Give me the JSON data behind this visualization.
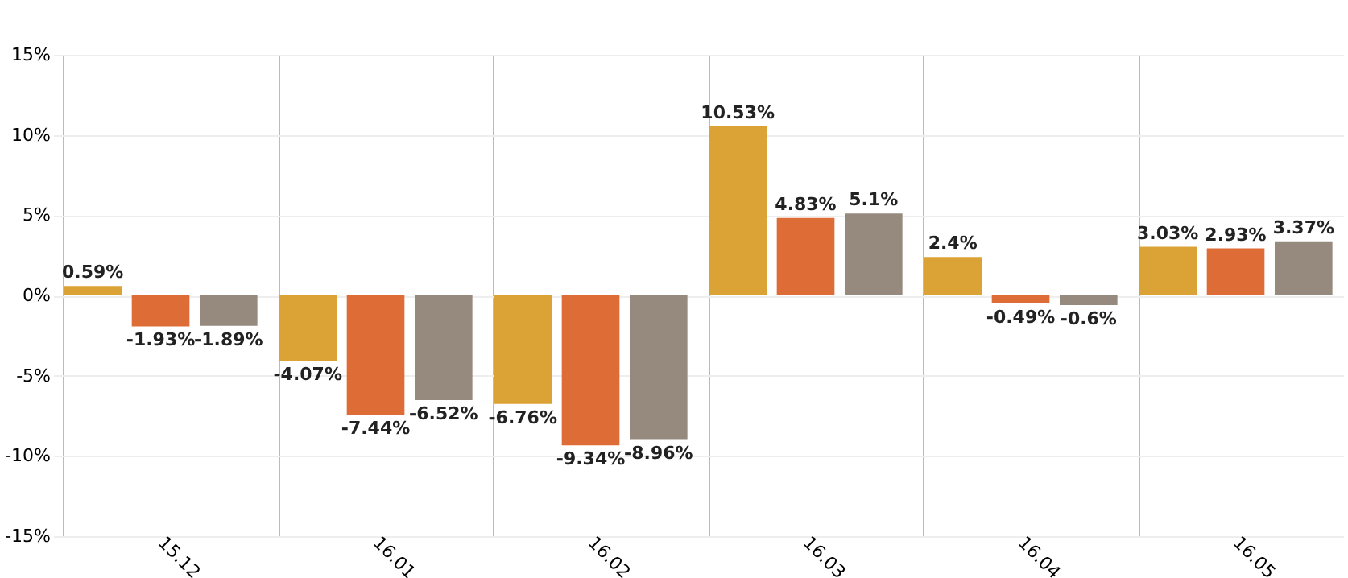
{
  "chart_data": {
    "type": "bar",
    "categories": [
      "15.12",
      "16.01",
      "16.02",
      "16.03",
      "16.04",
      "16.05"
    ],
    "series": [
      {
        "color": "#dba336",
        "values": [
          0.59,
          -4.07,
          -6.76,
          10.53,
          2.4,
          3.03
        ],
        "value_labels": [
          "0.59%",
          "-4.07%",
          "-6.76%",
          "10.53%",
          "2.4%",
          "3.03%"
        ]
      },
      {
        "color": "#de6c37",
        "values": [
          -1.93,
          -7.44,
          -9.34,
          4.83,
          -0.49,
          2.93
        ],
        "value_labels": [
          "-1.93%",
          "-7.44%",
          "-9.34%",
          "4.83%",
          "-0.49%",
          "2.93%"
        ]
      },
      {
        "color": "#968a7f",
        "values": [
          -1.89,
          -6.52,
          -8.96,
          5.1,
          -0.6,
          3.37
        ],
        "value_labels": [
          "-1.89%",
          "-6.52%",
          "-8.96%",
          "5.1%",
          "-0.6%",
          "3.37%"
        ]
      }
    ],
    "ylim": [
      -15,
      15
    ],
    "yticks": [
      {
        "value": -15,
        "label": "-15%"
      },
      {
        "value": -10,
        "label": "-10%"
      },
      {
        "value": -5,
        "label": "-5%"
      },
      {
        "value": 0,
        "label": "0%"
      },
      {
        "value": 5,
        "label": "5%"
      },
      {
        "value": 10,
        "label": "10%"
      },
      {
        "value": 15,
        "label": "15%"
      }
    ],
    "grid": true
  }
}
